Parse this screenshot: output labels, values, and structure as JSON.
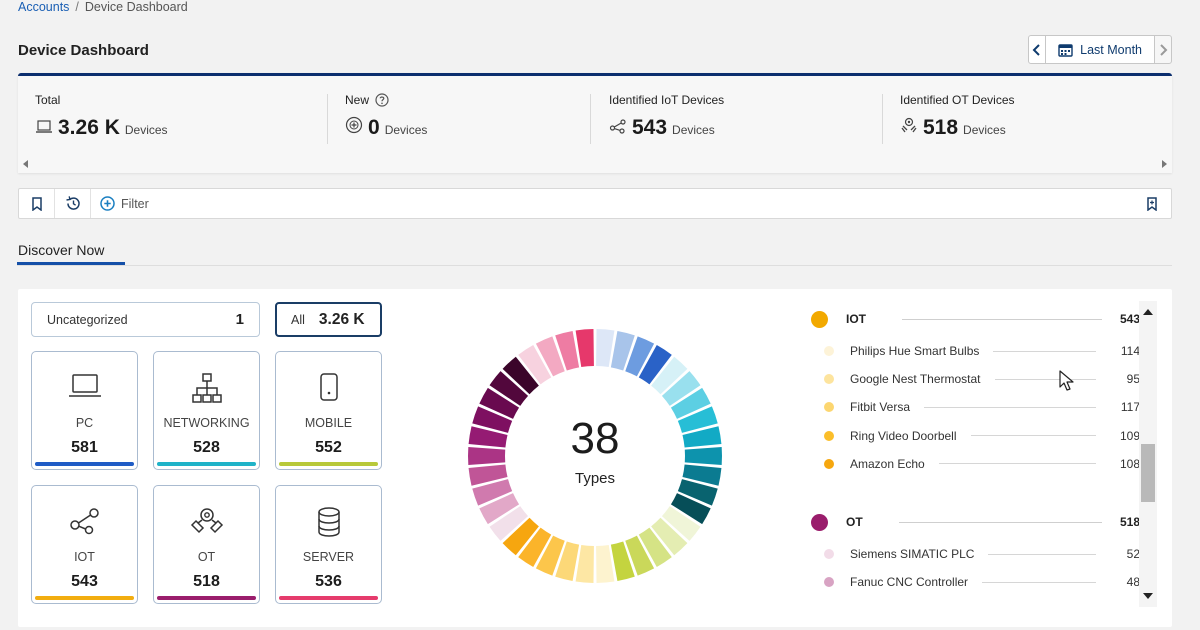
{
  "breadcrumb": {
    "root": "Accounts",
    "separator": "/",
    "current": "Device Dashboard"
  },
  "page": {
    "title": "Device Dashboard"
  },
  "date_nav": {
    "range_label": "Last Month"
  },
  "summary": {
    "cards": [
      {
        "label": "Total",
        "value": "3.26 K",
        "unit": "Devices",
        "icon": "laptop-icon"
      },
      {
        "label": "New",
        "value": "0",
        "unit": "Devices",
        "icon": "plus-circle-icon",
        "help_icon": "help-icon"
      },
      {
        "label": "Identified IoT Devices",
        "value": "543",
        "unit": "Devices",
        "icon": "iot-icon"
      },
      {
        "label": "Identified OT Devices",
        "value": "518",
        "unit": "Devices",
        "icon": "ot-icon"
      }
    ]
  },
  "filterbar": {
    "filter_label": "Filter"
  },
  "tabs": {
    "active": "Discover Now"
  },
  "discover": {
    "uncategorized": {
      "label": "Uncategorized",
      "count": "1"
    },
    "all": {
      "label": "All",
      "count": "3.26 K"
    },
    "tiles": [
      {
        "label": "PC",
        "count": "581",
        "color": "#1f5cc6",
        "icon": "laptop-icon"
      },
      {
        "label": "NETWORKING",
        "count": "528",
        "color": "#1fb3c8",
        "icon": "network-icon"
      },
      {
        "label": "MOBILE",
        "count": "552",
        "color": "#b8c93a",
        "icon": "mobile-icon"
      },
      {
        "label": "IOT",
        "count": "543",
        "color": "#f2ad10",
        "icon": "iot-icon"
      },
      {
        "label": "OT",
        "count": "518",
        "color": "#9a1d6c",
        "icon": "ot-icon"
      },
      {
        "label": "SERVER",
        "count": "536",
        "color": "#e53b6c",
        "icon": "database-icon"
      }
    ],
    "donut": {
      "value": "38",
      "label": "Types",
      "segment_colors": [
        "#dde7f7",
        "#a8c4ea",
        "#6d9ce0",
        "#2a62c7",
        "#d6f1f7",
        "#99e0ee",
        "#5ccfe3",
        "#27bed6",
        "#12aac5",
        "#0d93ad",
        "#0b7b91",
        "#09636f",
        "#064e58",
        "#f0f5d8",
        "#e4edb2",
        "#d5e385",
        "#cad85a",
        "#c4d43f",
        "#fdf3cf",
        "#fde7a4",
        "#fcd878",
        "#fcc64b",
        "#fbb42a",
        "#f6a60f",
        "#f2e0ea",
        "#e2a8c8",
        "#d07aae",
        "#c05597",
        "#ab3485",
        "#951b73",
        "#7e1061",
        "#690a4f",
        "#52073c",
        "#3b052a",
        "#f7d2df",
        "#f3a9c2",
        "#ee7ca3",
        "#e6386b"
      ]
    },
    "legend": {
      "groups": [
        {
          "name": "IOT",
          "total": "543",
          "color": "#f2a900",
          "items": [
            {
              "name": "Philips Hue Smart Bulbs",
              "value": "114",
              "color": "#fdf3d8"
            },
            {
              "name": "Google Nest Thermostat",
              "value": "95",
              "color": "#fde49e"
            },
            {
              "name": "Fitbit Versa",
              "value": "117",
              "color": "#fcd670"
            },
            {
              "name": "Ring Video Doorbell",
              "value": "109",
              "color": "#fbbe2a"
            },
            {
              "name": "Amazon Echo",
              "value": "108",
              "color": "#f6a70f"
            }
          ]
        },
        {
          "name": "OT",
          "total": "518",
          "color": "#9a1d6c",
          "items": [
            {
              "name": "Siemens SIMATIC PLC",
              "value": "52",
              "color": "#f2dce8"
            },
            {
              "name": "Fanuc CNC Controller",
              "value": "48",
              "color": "#d8a3c3"
            }
          ]
        }
      ]
    }
  }
}
